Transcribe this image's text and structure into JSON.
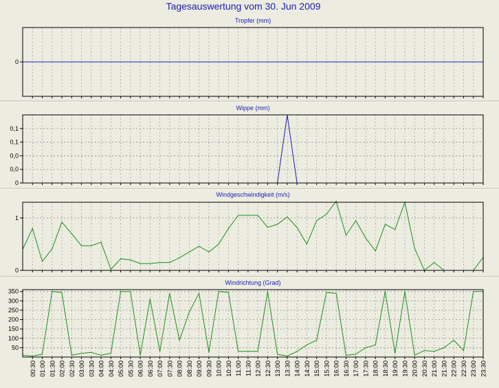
{
  "page": {
    "title": "Tagesauswertung vom 30. Jun 2009",
    "background": "#ecece0",
    "title_color": "#1c1cb4"
  },
  "chart_data": [
    {
      "id": "tropfer",
      "type": "line",
      "title": "Tropfer (mm)",
      "color": "#1c1cb4",
      "ylim": [
        -1,
        1
      ],
      "yticks": [
        {
          "value": 0,
          "label": "0"
        }
      ],
      "grid": true,
      "times": [
        "00:00",
        "00:30",
        "01:00",
        "01:30",
        "02:00",
        "02:30",
        "03:00",
        "03:30",
        "04:00",
        "04:30",
        "05:00",
        "05:30",
        "06:00",
        "06:30",
        "07:00",
        "07:30",
        "08:00",
        "08:30",
        "09:00",
        "09:30",
        "10:00",
        "10:30",
        "11:00",
        "11:30",
        "12:00",
        "12:30",
        "13:00",
        "13:30",
        "14:00",
        "14:30",
        "15:00",
        "15:30",
        "16:00",
        "16:30",
        "17:00",
        "17:30",
        "18:00",
        "18:30",
        "19:00",
        "19:30",
        "20:00",
        "20:30",
        "21:00",
        "21:30",
        "22:00",
        "22:30",
        "23:00",
        "23:30"
      ],
      "values": [
        0,
        0,
        0,
        0,
        0,
        0,
        0,
        0,
        0,
        0,
        0,
        0,
        0,
        0,
        0,
        0,
        0,
        0,
        0,
        0,
        0,
        0,
        0,
        0,
        0,
        0,
        0,
        0,
        0,
        0,
        0,
        0,
        0,
        0,
        0,
        0,
        0,
        0,
        0,
        0,
        0,
        0,
        0,
        0,
        0,
        0,
        0,
        0
      ]
    },
    {
      "id": "wippe",
      "type": "line",
      "title": "Wippe (mm)",
      "color": "#1c1cb4",
      "ylim": [
        0,
        0.2
      ],
      "yticks": [
        {
          "value": 0,
          "label": "0"
        },
        {
          "value": 0.04,
          "label": "0,0"
        },
        {
          "value": 0.08,
          "label": "0,0"
        },
        {
          "value": 0.12,
          "label": "0,1"
        },
        {
          "value": 0.16,
          "label": "0,1"
        }
      ],
      "grid": true,
      "times": [
        "00:00",
        "00:30",
        "01:00",
        "01:30",
        "02:00",
        "02:30",
        "03:00",
        "03:30",
        "04:00",
        "04:30",
        "05:00",
        "05:30",
        "06:00",
        "06:30",
        "07:00",
        "07:30",
        "08:00",
        "08:30",
        "09:00",
        "09:30",
        "10:00",
        "10:30",
        "11:00",
        "11:30",
        "12:00",
        "12:30",
        "13:00",
        "13:30",
        "14:00",
        "14:30",
        "15:00",
        "15:30",
        "16:00",
        "16:30",
        "17:00",
        "17:30",
        "18:00",
        "18:30",
        "19:00",
        "19:30",
        "20:00",
        "20:30",
        "21:00",
        "21:30",
        "22:00",
        "22:30",
        "23:00",
        "23:30"
      ],
      "values": [
        null,
        null,
        null,
        null,
        null,
        null,
        null,
        null,
        null,
        null,
        null,
        null,
        null,
        null,
        null,
        null,
        null,
        null,
        null,
        null,
        null,
        null,
        null,
        null,
        null,
        null,
        0,
        0.2,
        0,
        null,
        null,
        null,
        null,
        null,
        null,
        null,
        null,
        null,
        null,
        null,
        null,
        null,
        null,
        null,
        null,
        null,
        null,
        null
      ]
    },
    {
      "id": "windgeschwindigkeit",
      "type": "line",
      "title": "Windgeschwindigkeit (m/s)",
      "color": "#1f8c1f",
      "ylim": [
        0,
        1.3
      ],
      "yticks": [
        {
          "value": 0,
          "label": "0"
        },
        {
          "value": 1,
          "label": "1"
        }
      ],
      "grid": true,
      "times": [
        "00:00",
        "00:30",
        "01:00",
        "01:30",
        "02:00",
        "02:30",
        "03:00",
        "03:30",
        "04:00",
        "04:30",
        "05:00",
        "05:30",
        "06:00",
        "06:30",
        "07:00",
        "07:30",
        "08:00",
        "08:30",
        "09:00",
        "09:30",
        "10:00",
        "10:30",
        "11:00",
        "11:30",
        "12:00",
        "12:30",
        "13:00",
        "13:30",
        "14:00",
        "14:30",
        "15:00",
        "15:30",
        "16:00",
        "16:30",
        "17:00",
        "17:30",
        "18:00",
        "18:30",
        "19:00",
        "19:30",
        "20:00",
        "20:30",
        "21:00",
        "21:30",
        "22:00",
        "22:30",
        "23:00",
        "23:30"
      ],
      "values": [
        0.4,
        0.8,
        0.17,
        0.41,
        0.92,
        0.7,
        0.47,
        0.47,
        0.54,
        0.02,
        0.22,
        0.2,
        0.13,
        0.13,
        0.15,
        0.15,
        0.24,
        0.35,
        0.46,
        0.35,
        0.5,
        0.8,
        1.05,
        1.05,
        1.05,
        0.82,
        0.88,
        1.02,
        0.82,
        0.5,
        0.95,
        1.07,
        1.32,
        0.67,
        0.95,
        0.62,
        0.37,
        0.88,
        0.78,
        1.3,
        0.42,
        0,
        0.15,
        0,
        0,
        0,
        0,
        0.25
      ]
    },
    {
      "id": "windrichtung",
      "type": "line",
      "title": "Windrichtung (Grad)",
      "color": "#1f8c1f",
      "ylim": [
        0,
        360
      ],
      "yticks": [
        {
          "value": 50,
          "label": "50"
        },
        {
          "value": 100,
          "label": "100"
        },
        {
          "value": 150,
          "label": "150"
        },
        {
          "value": 200,
          "label": "200"
        },
        {
          "value": 250,
          "label": "250"
        },
        {
          "value": 300,
          "label": "300"
        },
        {
          "value": 350,
          "label": "350"
        }
      ],
      "grid": true,
      "times": [
        "00:00",
        "00:30",
        "01:00",
        "01:30",
        "02:00",
        "02:30",
        "03:00",
        "03:30",
        "04:00",
        "04:30",
        "05:00",
        "05:30",
        "06:00",
        "06:30",
        "07:00",
        "07:30",
        "08:00",
        "08:30",
        "09:00",
        "09:30",
        "10:00",
        "10:30",
        "11:00",
        "11:30",
        "12:00",
        "12:30",
        "13:00",
        "13:30",
        "14:00",
        "14:30",
        "15:00",
        "15:30",
        "16:00",
        "16:30",
        "17:00",
        "17:30",
        "18:00",
        "18:30",
        "19:00",
        "19:30",
        "20:00",
        "20:30",
        "21:00",
        "21:30",
        "22:00",
        "22:30",
        "23:00",
        "23:30"
      ],
      "values": [
        10,
        5,
        15,
        350,
        345,
        10,
        20,
        25,
        10,
        20,
        350,
        350,
        10,
        310,
        30,
        340,
        90,
        240,
        340,
        25,
        350,
        345,
        30,
        30,
        30,
        350,
        15,
        5,
        30,
        65,
        90,
        345,
        340,
        10,
        15,
        50,
        65,
        350,
        20,
        350,
        10,
        35,
        30,
        50,
        90,
        35,
        350,
        350
      ],
      "xticks": [
        "00:30",
        "01:00",
        "01:30",
        "02:00",
        "02:30",
        "03:00",
        "03:30",
        "04:00",
        "04:30",
        "05:00",
        "05:30",
        "06:00",
        "06:30",
        "07:00",
        "07:30",
        "08:00",
        "08:30",
        "09:00",
        "09:30",
        "10:00",
        "10:30",
        "11:00",
        "11:30",
        "12:00",
        "12:30",
        "13:00",
        "13:30",
        "14:00",
        "14:30",
        "15:00",
        "15:30",
        "16:00",
        "16:30",
        "17:00",
        "17:30",
        "18:00",
        "18:30",
        "19:00",
        "19:30",
        "20:00",
        "20:30",
        "21:00",
        "21:30",
        "22:00",
        "22:30",
        "23:00",
        "23:30"
      ]
    }
  ]
}
